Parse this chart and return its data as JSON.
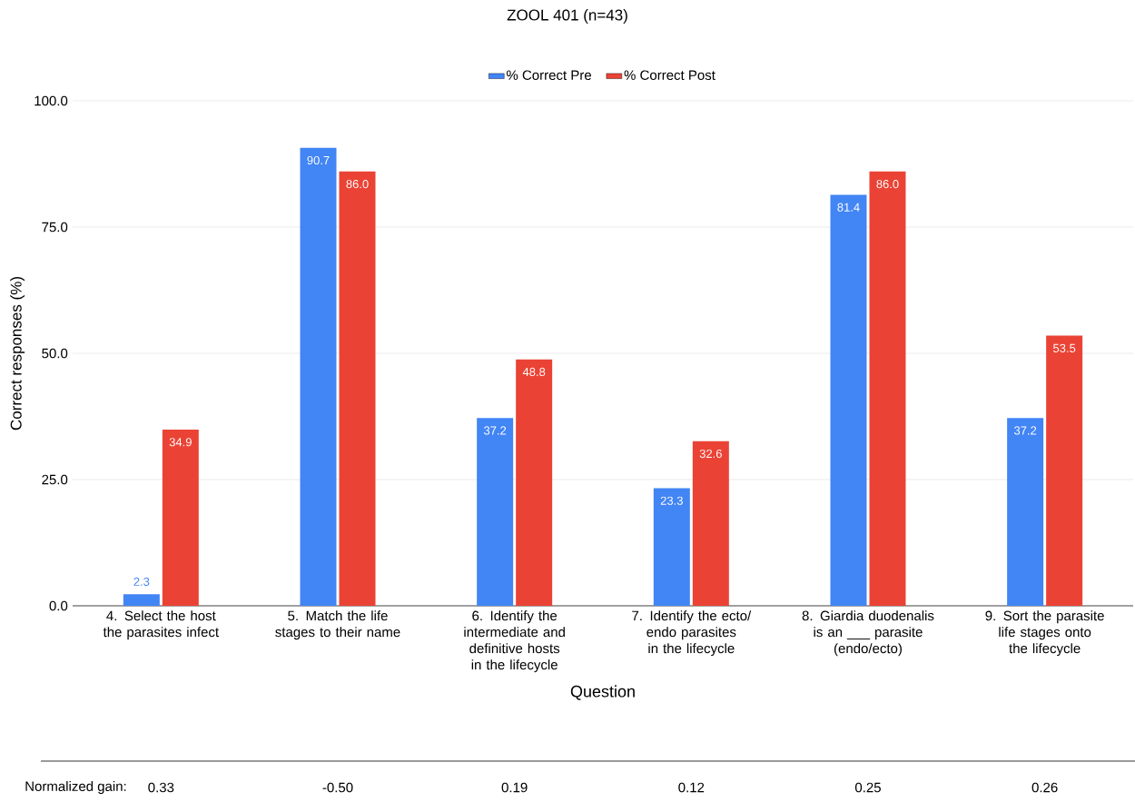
{
  "chart_data": {
    "type": "bar",
    "title": "ZOOL 401 (n=43)",
    "xlabel": "Question",
    "ylabel": "Correct responses (%)",
    "categories": [
      "4. Select the host the parasites infect",
      "5. Match the life stages to their name",
      "6. Identify the intermediate and definitive hosts in the lifecycle",
      "7. Identify the ecto/ endo parasites in the lifecycle",
      "8. Giardia duodenalis is an ___ parasite (endo/ecto)",
      "9. Sort the parasite life stages onto the lifecycle"
    ],
    "series": [
      {
        "name": "% Correct Pre",
        "color": "#4285f4",
        "values": [
          2.3,
          90.7,
          37.2,
          23.3,
          81.4,
          37.2
        ],
        "value_labels": [
          "2.3",
          "90.7",
          "37.2",
          "23.3",
          "81.4",
          "37.2"
        ]
      },
      {
        "name": "% Correct Post",
        "color": "#ea4335",
        "values": [
          34.9,
          86.0,
          48.8,
          32.6,
          86.0,
          53.5
        ],
        "value_labels": [
          "34.9",
          "86.0",
          "48.8",
          "32.6",
          "86.0",
          "53.5"
        ]
      }
    ],
    "ylim": [
      0,
      100
    ],
    "yticks": [
      {
        "value": 0,
        "label": "0.0"
      },
      {
        "value": 25,
        "label": "25.0"
      },
      {
        "value": 50,
        "label": "50.0"
      },
      {
        "value": 75,
        "label": "75.0"
      },
      {
        "value": 100,
        "label": "100.0"
      }
    ],
    "grid": "y",
    "legend": "top",
    "annotations": [
      "Normalized gain:",
      "0.33",
      "-0.50",
      "0.19",
      "0.12",
      "0.25",
      "0.26"
    ]
  }
}
